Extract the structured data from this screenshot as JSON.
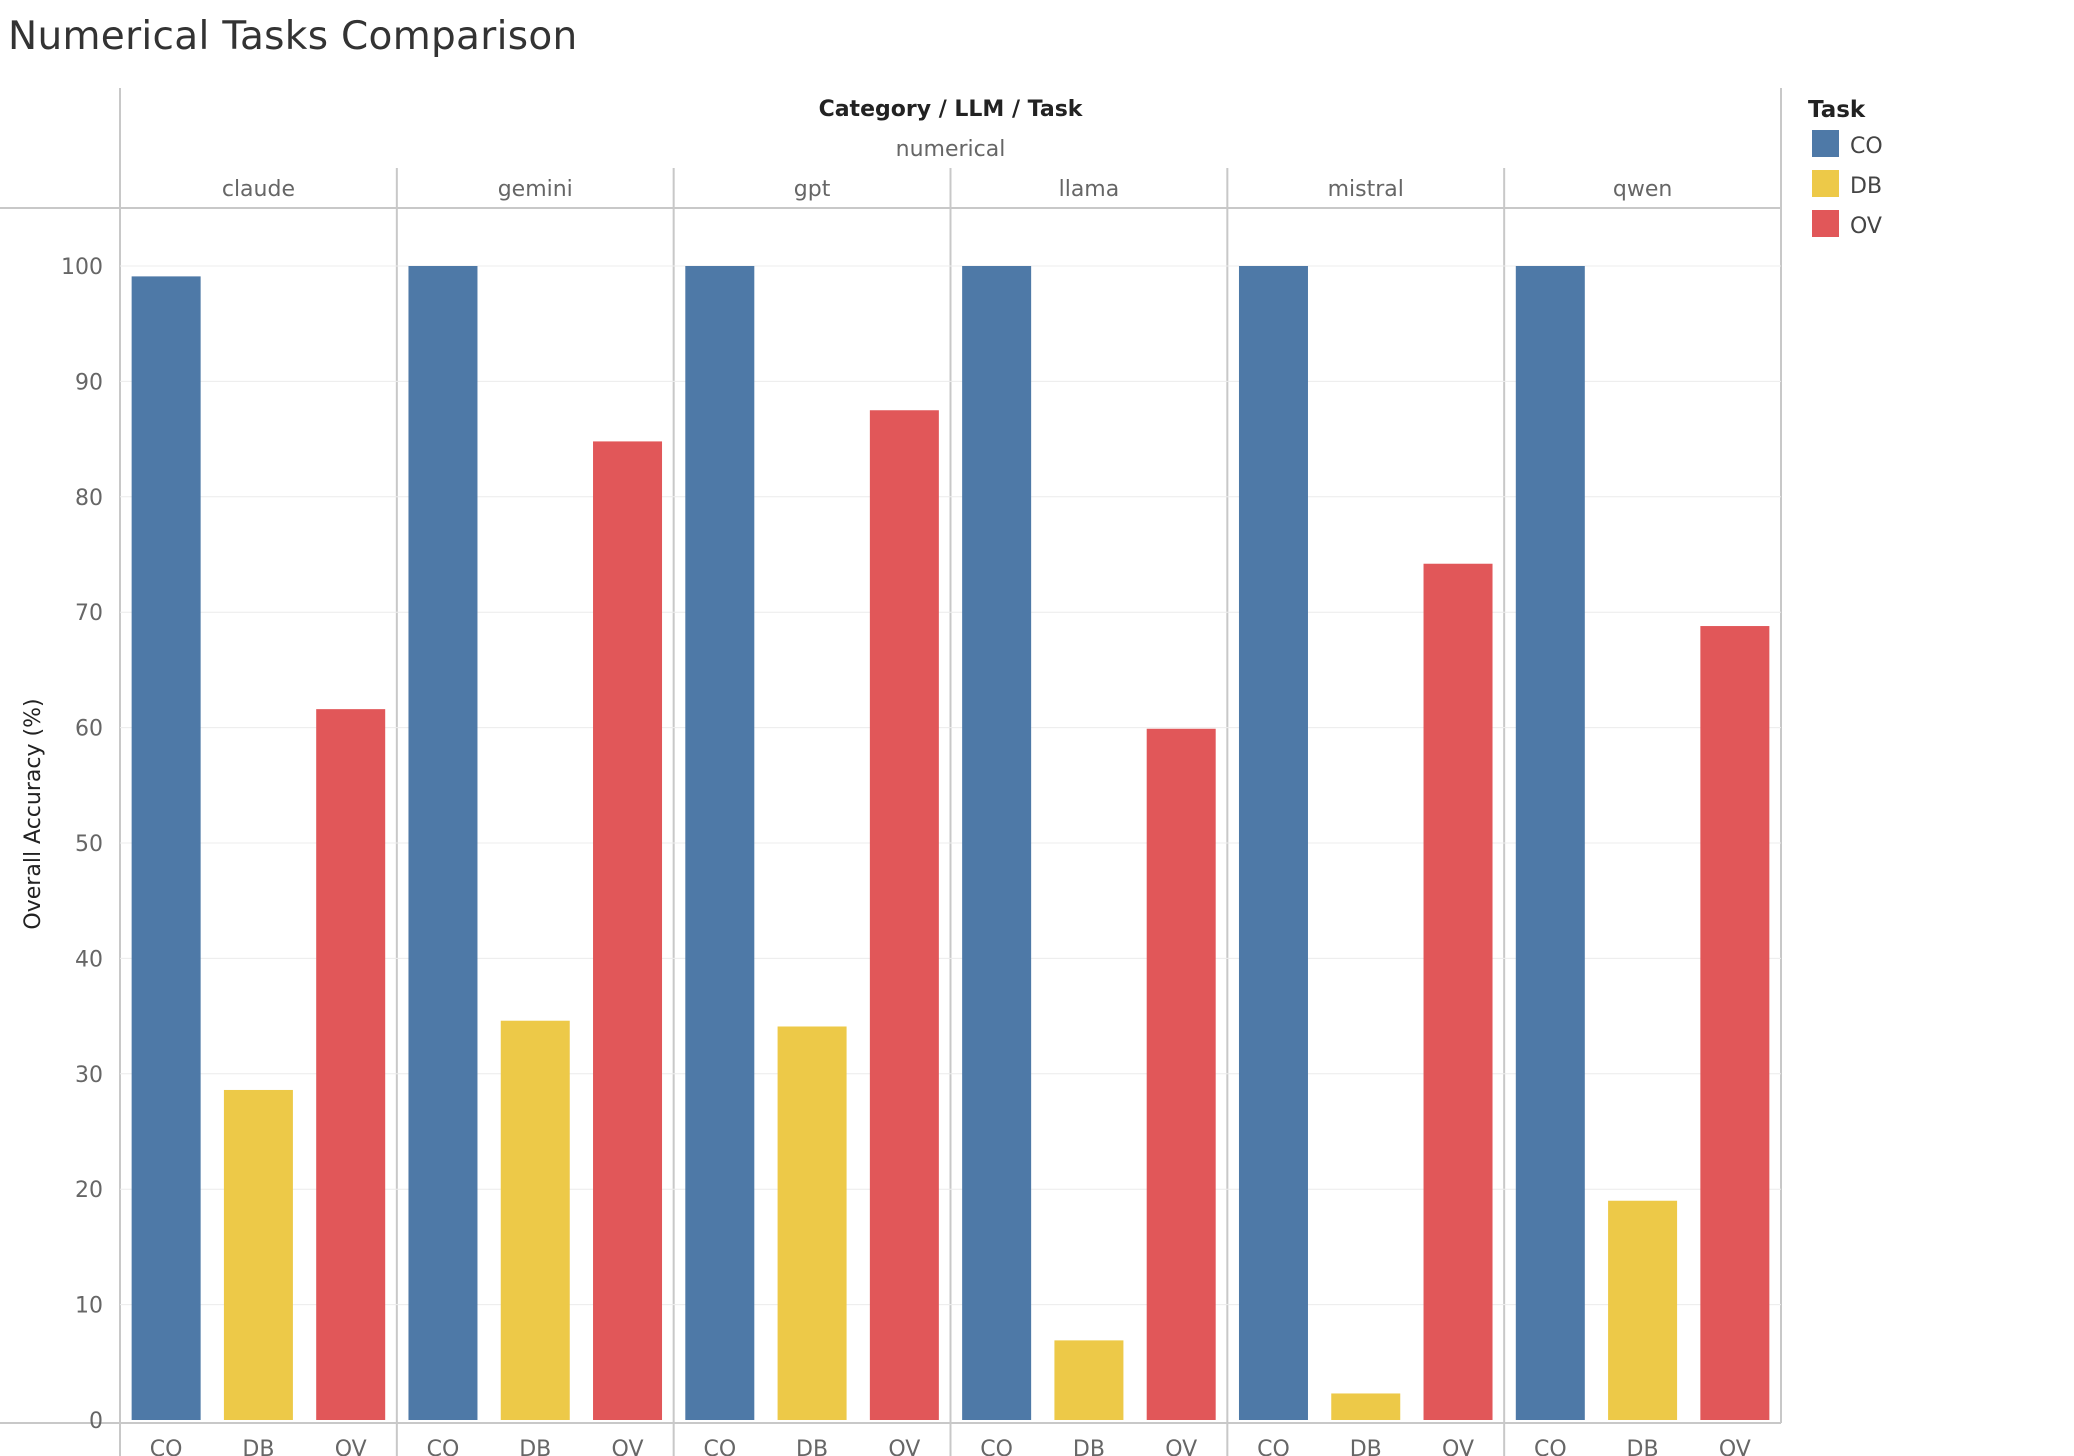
{
  "title": "Numerical Tasks Comparison",
  "chart_data": {
    "type": "bar",
    "header_title": "Category / LLM / Task",
    "category": "numerical",
    "groups": [
      "claude",
      "gemini",
      "gpt",
      "llama",
      "mistral",
      "qwen"
    ],
    "tasks": [
      "CO",
      "DB",
      "OV"
    ],
    "series": [
      {
        "name": "CO",
        "color": "#4e79a7",
        "values": [
          99.1,
          100,
          100,
          100,
          100,
          100
        ]
      },
      {
        "name": "DB",
        "color": "#edc948",
        "values": [
          28.6,
          34.6,
          34.1,
          6.9,
          2.3,
          19.0
        ]
      },
      {
        "name": "OV",
        "color": "#e15759",
        "values": [
          61.6,
          84.8,
          87.5,
          59.9,
          74.2,
          68.8
        ]
      }
    ],
    "ylabel": "Overall Accuracy (%)",
    "yticks": [
      0,
      10,
      20,
      30,
      40,
      50,
      60,
      70,
      80,
      90,
      100
    ],
    "ylim": [
      0,
      105
    ],
    "grid": true,
    "legend": {
      "title": "Task",
      "placement": "right"
    }
  }
}
